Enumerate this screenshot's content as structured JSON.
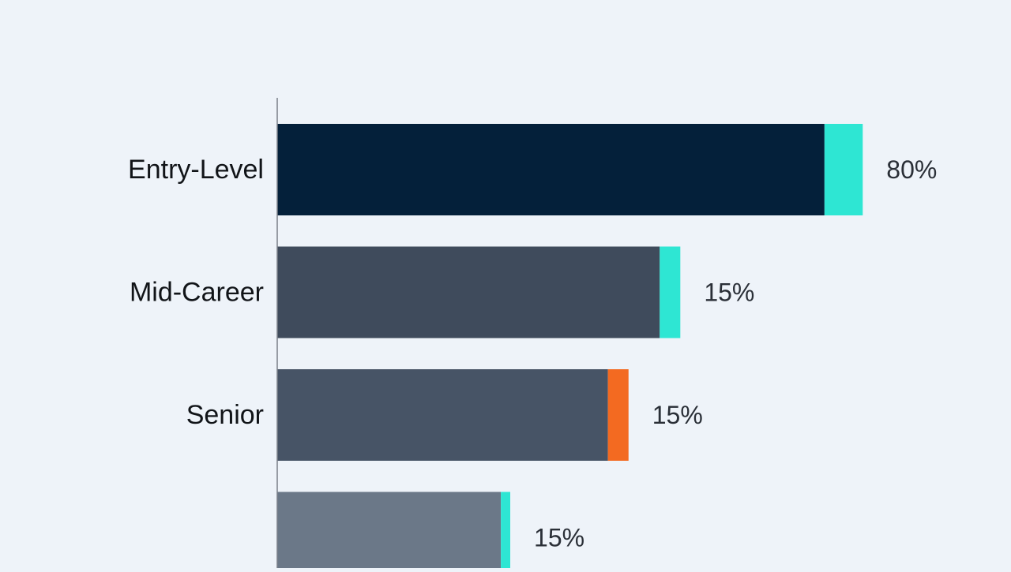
{
  "chart_data": {
    "type": "bar",
    "orientation": "horizontal",
    "categories": [
      "Entry-Level",
      "Mid-Career",
      "Senior",
      ""
    ],
    "bars": [
      {
        "label": "Entry-Level",
        "value_label": "80%",
        "base_length": 0.93,
        "accent_length": 0.065,
        "base_color": "#04203a",
        "accent_color": "#2ee6d3"
      },
      {
        "label": "Mid-Career",
        "value_label": "15%",
        "base_length": 0.65,
        "accent_length": 0.035,
        "base_color": "#3f4b5c",
        "accent_color": "#2ee6d3"
      },
      {
        "label": "Senior",
        "value_label": "15%",
        "base_length": 0.562,
        "accent_length": 0.035,
        "base_color": "#475466",
        "accent_color": "#f36a21"
      },
      {
        "label": "",
        "value_label": "15%",
        "base_length": 0.38,
        "accent_length": 0.016,
        "base_color": "#6b7888",
        "accent_color": "#2ee6d3"
      }
    ],
    "colors": {
      "background": "#eef3f9",
      "axis": "#7a7f87",
      "label_text": "#111418",
      "value_text": "#2a2f37"
    },
    "grid": false,
    "legend": "none"
  }
}
